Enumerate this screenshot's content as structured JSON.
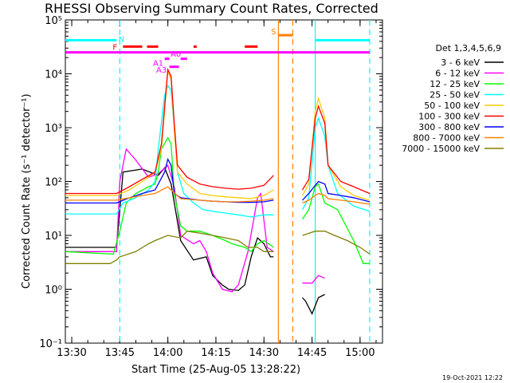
{
  "window": {
    "width_label": "640x480 RHESSI quicklook plot",
    "footer_date": "19-Oct-2021 12:22"
  },
  "chart_data": {
    "type": "line",
    "title": "RHESSI Observing Summary Count Rates, Corrected",
    "xlabel": "Start Time (25-Aug-05 13:28:22)",
    "ylabel": "Corrected Count Rate (s⁻¹ detector⁻¹)",
    "yscale": "log",
    "xlim_minutes": [
      -2,
      97
    ],
    "ylim": [
      0.1,
      100000
    ],
    "x_ticks": [
      {
        "label": "13:30",
        "t": 0
      },
      {
        "label": "13:45",
        "t": 15
      },
      {
        "label": "14:00",
        "t": 30
      },
      {
        "label": "14:15",
        "t": 45
      },
      {
        "label": "14:30",
        "t": 60
      },
      {
        "label": "14:45",
        "t": 75
      },
      {
        "label": "15:00",
        "t": 90
      }
    ],
    "y_ticks": [
      {
        "label": "10⁻¹",
        "v": 0.1
      },
      {
        "label": "10⁰",
        "v": 1
      },
      {
        "label": "10¹",
        "v": 10
      },
      {
        "label": "10²",
        "v": 100
      },
      {
        "label": "10³",
        "v": 1000
      },
      {
        "label": "10⁴",
        "v": 10000
      },
      {
        "label": "10⁵",
        "v": 100000
      }
    ],
    "legend_title": "Det 1,3,4,5,6,9",
    "series": [
      {
        "name": "3 - 6 keV",
        "color": "#000000",
        "points": [
          [
            -2,
            6
          ],
          [
            14,
            6
          ],
          [
            16,
            150
          ],
          [
            22,
            170
          ],
          [
            27,
            130
          ],
          [
            29,
            180
          ],
          [
            31,
            90
          ],
          [
            34,
            8
          ],
          [
            38,
            3.5
          ],
          [
            42,
            4
          ],
          [
            44,
            1.8
          ],
          [
            47,
            1.2
          ],
          [
            49,
            1
          ],
          [
            52,
            0.95
          ],
          [
            54,
            1.2
          ],
          [
            56,
            4
          ],
          [
            58,
            9
          ],
          [
            60,
            7
          ],
          [
            62,
            4
          ],
          [
            63,
            4
          ],
          [
            71,
            null
          ],
          [
            72,
            0.7
          ],
          [
            73,
            0.6
          ],
          [
            75,
            0.35
          ],
          [
            77,
            0.7
          ],
          [
            79,
            0.8
          ]
        ]
      },
      {
        "name": "6 - 12 keV",
        "color": "#ff00ff",
        "points": [
          [
            -2,
            5
          ],
          [
            14,
            5
          ],
          [
            15,
            100
          ],
          [
            17,
            400
          ],
          [
            20,
            250
          ],
          [
            24,
            120
          ],
          [
            27,
            140
          ],
          [
            30,
            200
          ],
          [
            32,
            80
          ],
          [
            34,
            10
          ],
          [
            38,
            7
          ],
          [
            40,
            8
          ],
          [
            42,
            5
          ],
          [
            44,
            2
          ],
          [
            47,
            1
          ],
          [
            50,
            0.9
          ],
          [
            52,
            1.2
          ],
          [
            55,
            5
          ],
          [
            58,
            50
          ],
          [
            59,
            60
          ],
          [
            61,
            6
          ],
          [
            63,
            5
          ],
          [
            71,
            null
          ],
          [
            72,
            1.3
          ],
          [
            75,
            1.3
          ],
          [
            77,
            1.8
          ],
          [
            79,
            1.6
          ]
        ]
      },
      {
        "name": "12 - 25 keV",
        "color": "#00ff00",
        "points": [
          [
            -2,
            5
          ],
          [
            13,
            4.5
          ],
          [
            15,
            12
          ],
          [
            17,
            40
          ],
          [
            20,
            60
          ],
          [
            24,
            80
          ],
          [
            26,
            90
          ],
          [
            27,
            150
          ],
          [
            28,
            400
          ],
          [
            30,
            650
          ],
          [
            31,
            500
          ],
          [
            32,
            60
          ],
          [
            34,
            15
          ],
          [
            36,
            12
          ],
          [
            40,
            12
          ],
          [
            44,
            10
          ],
          [
            48,
            8
          ],
          [
            50,
            7
          ],
          [
            54,
            6
          ],
          [
            56,
            5
          ],
          [
            58,
            7
          ],
          [
            60,
            8
          ],
          [
            63,
            6
          ],
          [
            71,
            null
          ],
          [
            72,
            20
          ],
          [
            74,
            30
          ],
          [
            76,
            80
          ],
          [
            77,
            90
          ],
          [
            79,
            40
          ],
          [
            83,
            30
          ],
          [
            88,
            8
          ],
          [
            91,
            3
          ],
          [
            93,
            3
          ]
        ]
      },
      {
        "name": "25 - 50 keV",
        "color": "#00ffff",
        "points": [
          [
            -2,
            25
          ],
          [
            14,
            25
          ],
          [
            16,
            40
          ],
          [
            20,
            50
          ],
          [
            24,
            70
          ],
          [
            26,
            100
          ],
          [
            27,
            400
          ],
          [
            29,
            4000
          ],
          [
            30,
            6000
          ],
          [
            31,
            5000
          ],
          [
            32,
            1000
          ],
          [
            33,
            150
          ],
          [
            35,
            60
          ],
          [
            38,
            40
          ],
          [
            41,
            30
          ],
          [
            44,
            28
          ],
          [
            48,
            26
          ],
          [
            52,
            24
          ],
          [
            56,
            22
          ],
          [
            60,
            24
          ],
          [
            63,
            24
          ],
          [
            71,
            null
          ],
          [
            72,
            30
          ],
          [
            74,
            50
          ],
          [
            76,
            1000
          ],
          [
            77,
            1500
          ],
          [
            79,
            700
          ],
          [
            80,
            200
          ],
          [
            83,
            60
          ],
          [
            88,
            35
          ],
          [
            93,
            28
          ]
        ]
      },
      {
        "name": "50 - 100 keV",
        "color": "#ffcc00",
        "points": [
          [
            -2,
            55
          ],
          [
            14,
            55
          ],
          [
            18,
            70
          ],
          [
            22,
            100
          ],
          [
            26,
            150
          ],
          [
            28,
            400
          ],
          [
            30,
            11000
          ],
          [
            31,
            8000
          ],
          [
            32,
            900
          ],
          [
            33,
            150
          ],
          [
            36,
            90
          ],
          [
            40,
            60
          ],
          [
            44,
            55
          ],
          [
            48,
            52
          ],
          [
            52,
            50
          ],
          [
            56,
            48
          ],
          [
            60,
            55
          ],
          [
            63,
            70
          ],
          [
            71,
            null
          ],
          [
            72,
            55
          ],
          [
            74,
            90
          ],
          [
            76,
            2000
          ],
          [
            77,
            3500
          ],
          [
            79,
            1500
          ],
          [
            80,
            200
          ],
          [
            84,
            80
          ],
          [
            88,
            55
          ],
          [
            93,
            45
          ]
        ]
      },
      {
        "name": "100 - 300 keV",
        "color": "#ff0000",
        "points": [
          [
            -2,
            60
          ],
          [
            14,
            60
          ],
          [
            18,
            80
          ],
          [
            22,
            110
          ],
          [
            26,
            150
          ],
          [
            28,
            500
          ],
          [
            30,
            12000
          ],
          [
            31,
            9000
          ],
          [
            32,
            1200
          ],
          [
            33,
            200
          ],
          [
            36,
            120
          ],
          [
            40,
            90
          ],
          [
            44,
            80
          ],
          [
            48,
            75
          ],
          [
            52,
            72
          ],
          [
            56,
            75
          ],
          [
            60,
            85
          ],
          [
            63,
            130
          ],
          [
            71,
            null
          ],
          [
            72,
            70
          ],
          [
            74,
            110
          ],
          [
            76,
            1500
          ],
          [
            77,
            2500
          ],
          [
            79,
            1200
          ],
          [
            80,
            200
          ],
          [
            84,
            100
          ],
          [
            88,
            80
          ],
          [
            93,
            60
          ]
        ]
      },
      {
        "name": "300 - 800 keV",
        "color": "#0000ff",
        "points": [
          [
            -2,
            40
          ],
          [
            14,
            40
          ],
          [
            18,
            50
          ],
          [
            22,
            60
          ],
          [
            26,
            70
          ],
          [
            29,
            150
          ],
          [
            30,
            260
          ],
          [
            31,
            200
          ],
          [
            32,
            60
          ],
          [
            34,
            50
          ],
          [
            40,
            45
          ],
          [
            44,
            43
          ],
          [
            48,
            42
          ],
          [
            52,
            41
          ],
          [
            56,
            41
          ],
          [
            60,
            42
          ],
          [
            63,
            45
          ],
          [
            71,
            null
          ],
          [
            72,
            45
          ],
          [
            74,
            60
          ],
          [
            76,
            85
          ],
          [
            77,
            100
          ],
          [
            79,
            90
          ],
          [
            80,
            60
          ],
          [
            84,
            55
          ],
          [
            88,
            50
          ],
          [
            93,
            42
          ]
        ]
      },
      {
        "name": "800 - 7000 keV",
        "color": "#ff8000",
        "points": [
          [
            -2,
            45
          ],
          [
            14,
            45
          ],
          [
            18,
            50
          ],
          [
            22,
            55
          ],
          [
            26,
            60
          ],
          [
            30,
            80
          ],
          [
            31,
            70
          ],
          [
            34,
            48
          ],
          [
            40,
            45
          ],
          [
            44,
            43
          ],
          [
            48,
            42
          ],
          [
            52,
            42
          ],
          [
            56,
            43
          ],
          [
            60,
            45
          ],
          [
            63,
            48
          ],
          [
            71,
            null
          ],
          [
            72,
            40
          ],
          [
            74,
            45
          ],
          [
            76,
            55
          ],
          [
            77,
            60
          ],
          [
            79,
            55
          ],
          [
            80,
            48
          ],
          [
            84,
            45
          ],
          [
            88,
            42
          ],
          [
            93,
            38
          ]
        ]
      },
      {
        "name": "7000 - 15000 keV",
        "color": "#808000",
        "points": [
          [
            -2,
            3
          ],
          [
            12,
            3
          ],
          [
            14,
            3.5
          ],
          [
            15,
            4
          ],
          [
            20,
            5
          ],
          [
            24,
            7
          ],
          [
            26,
            8
          ],
          [
            30,
            10
          ],
          [
            34,
            9
          ],
          [
            36,
            12
          ],
          [
            40,
            11
          ],
          [
            44,
            10
          ],
          [
            48,
            9
          ],
          [
            52,
            8
          ],
          [
            55,
            6
          ],
          [
            58,
            6
          ],
          [
            60,
            5
          ],
          [
            63,
            5
          ],
          [
            71,
            null
          ],
          [
            72,
            10
          ],
          [
            76,
            12
          ],
          [
            79,
            12
          ],
          [
            82,
            10
          ],
          [
            86,
            8
          ],
          [
            90,
            6
          ],
          [
            93,
            4.5
          ]
        ]
      }
    ],
    "state_bars": [
      {
        "label": "N",
        "color": "#00ffff",
        "spans": [
          [
            -2,
            14
          ],
          [
            76,
            93
          ]
        ],
        "level": 42000
      },
      {
        "label": "F",
        "color": "#ff00ff",
        "spans": [
          [
            -2,
            93
          ]
        ],
        "level": 25000
      },
      {
        "label": "",
        "color": "#ff0000",
        "spans": [
          [
            16,
            22
          ],
          [
            23.5,
            27
          ],
          [
            38,
            39
          ],
          [
            54,
            58
          ]
        ],
        "level": 32000
      }
    ],
    "annotations": [
      {
        "text": "N",
        "t": 15.5,
        "v": 45000,
        "color": "#00ffff"
      },
      {
        "text": "F",
        "t": 13.5,
        "v": 32000,
        "color": "#ff0000"
      },
      {
        "text": "S",
        "t": 63,
        "v": 62000,
        "color": "#ff8000"
      },
      {
        "text": "A0",
        "t": 32.5,
        "v": 24000,
        "color": "#ff00ff"
      },
      {
        "text": "A1",
        "t": 27,
        "v": 16000,
        "color": "#ff00ff"
      },
      {
        "text": "A3",
        "t": 28,
        "v": 12000,
        "color": "#ff00ff"
      }
    ],
    "attenuator_bars": [
      {
        "t0": 29,
        "t1": 30.5,
        "v": 19000,
        "color": "#ff00ff"
      },
      {
        "t0": 30.5,
        "t1": 33.5,
        "v": 13500,
        "color": "#ff00ff"
      },
      {
        "t0": 34,
        "t1": 36,
        "v": 19000,
        "color": "#ff00ff"
      }
    ],
    "saa_bar": {
      "t0": 64.5,
      "t1": 69,
      "v": 52000,
      "color": "#ff8000"
    },
    "vertical_markers": [
      {
        "t": 15,
        "color": "#00ffff",
        "style": "dashed"
      },
      {
        "t": 64.5,
        "color": "#ff8000",
        "style": "solid"
      },
      {
        "t": 69,
        "color": "#ff8000",
        "style": "dashed"
      },
      {
        "t": 76,
        "color": "#00ffff",
        "style": "solid"
      },
      {
        "t": 93,
        "color": "#00ffff",
        "style": "dashed"
      }
    ]
  }
}
